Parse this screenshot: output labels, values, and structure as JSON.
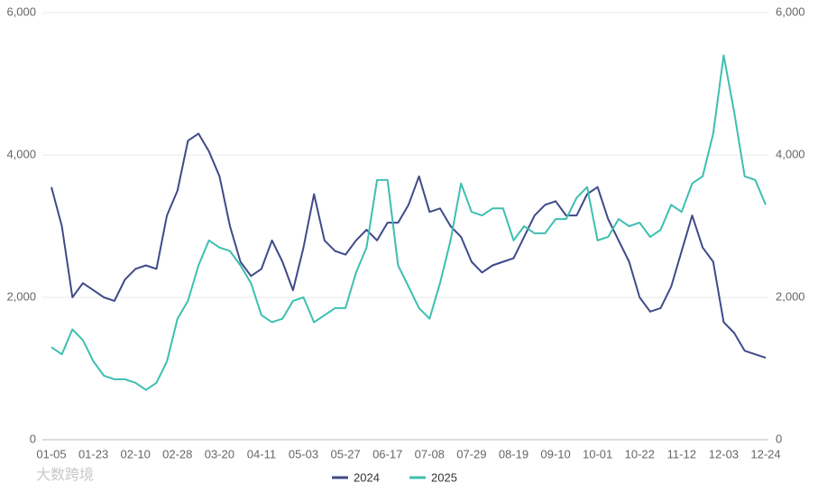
{
  "chart_data": {
    "type": "line",
    "categories": [
      "01-05",
      null,
      null,
      null,
      "01-23",
      null,
      null,
      null,
      "02-10",
      null,
      null,
      null,
      "02-28",
      null,
      null,
      null,
      "03-20",
      null,
      null,
      null,
      "04-11",
      null,
      null,
      null,
      "05-03",
      null,
      null,
      null,
      "05-27",
      null,
      null,
      null,
      "06-17",
      null,
      null,
      null,
      "07-08",
      null,
      null,
      null,
      "07-29",
      null,
      null,
      null,
      "08-19",
      null,
      null,
      null,
      "09-10",
      null,
      null,
      null,
      "10-01",
      null,
      null,
      null,
      "10-22",
      null,
      null,
      null,
      "11-12",
      null,
      null,
      null,
      "12-03",
      null,
      null,
      null,
      "12-24"
    ],
    "series": [
      {
        "name": "2024",
        "color": "#3f4a8a",
        "values": [
          3550,
          3000,
          2000,
          2200,
          2100,
          2000,
          1950,
          2250,
          2400,
          2450,
          2400,
          3150,
          3500,
          4200,
          4300,
          4050,
          3700,
          3000,
          2500,
          2300,
          2400,
          2800,
          2500,
          2100,
          2700,
          3450,
          2800,
          2650,
          2600,
          2800,
          2950,
          2800,
          3050,
          3050,
          3300,
          3700,
          3200,
          3250,
          3000,
          2850,
          2500,
          2350,
          2450,
          2500,
          2550,
          2850,
          3150,
          3300,
          3350,
          3150,
          3150,
          3450,
          3550,
          3100,
          2800,
          2500,
          2000,
          1800,
          1850,
          2150,
          2650,
          3150,
          2700,
          2500,
          1650,
          1500,
          1250,
          1200,
          1150
        ]
      },
      {
        "name": "2025",
        "color": "#3dbfb0",
        "axis": "y2",
        "values": [
          1300,
          1200,
          1550,
          1400,
          1100,
          900,
          850,
          850,
          800,
          700,
          800,
          1100,
          1700,
          1950,
          2450,
          2800,
          2700,
          2650,
          2450,
          2200,
          1750,
          1650,
          1700,
          1950,
          2000,
          1650,
          1750,
          1850,
          1850,
          2350,
          2700,
          3650,
          3650,
          2450,
          2150,
          1850,
          1700,
          2200,
          2800,
          3600,
          3200,
          3150,
          3250,
          3250,
          2800,
          3000,
          2900,
          2900,
          3100,
          3100,
          3400,
          3550,
          2800,
          2850,
          3100,
          3000,
          3050,
          2850,
          2950,
          3300,
          3200,
          3600,
          3700,
          4300,
          5400,
          4600,
          3700,
          3650,
          3300
        ]
      }
    ],
    "ylim": [
      0,
      6000
    ],
    "yticks": [
      0,
      {
        "value": 2000,
        "label": "2,000"
      },
      {
        "value": 4000,
        "label": "4,000"
      },
      {
        "value": 6000,
        "label": "6,000"
      }
    ],
    "y2lim": [
      0,
      6000
    ],
    "y2ticks": [
      0,
      {
        "value": 2000,
        "label": "2,000"
      },
      {
        "value": 4000,
        "label": "4,000"
      },
      {
        "value": 6000,
        "label": "6,000"
      }
    ],
    "grid": true,
    "legend": "bottom",
    "watermark": "大数跨境"
  }
}
